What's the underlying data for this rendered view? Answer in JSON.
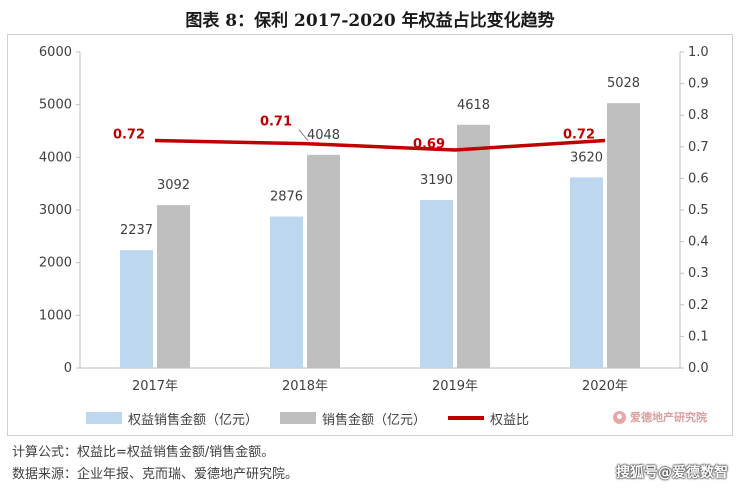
{
  "title": "图表 8：保利 2017-2020 年权益占比变化趋势",
  "chart_data": {
    "type": "bar",
    "categories": [
      "2017年",
      "2018年",
      "2019年",
      "2020年"
    ],
    "series": [
      {
        "name": "权益销售金额（亿元）",
        "type": "bar",
        "axis": "left",
        "color": "#bdd7ee",
        "values": [
          2237,
          2876,
          3190,
          3620
        ],
        "labels": [
          "2237",
          "2876",
          "3190",
          "3620"
        ]
      },
      {
        "name": "销售金额（亿元）",
        "type": "bar",
        "axis": "left",
        "color": "#bfbfbf",
        "values": [
          3092,
          4048,
          4618,
          5028
        ],
        "labels": [
          "3092",
          "4048",
          "4618",
          "5028"
        ]
      },
      {
        "name": "权益比",
        "type": "line",
        "axis": "right",
        "color": "#c00000",
        "values": [
          0.72,
          0.71,
          0.69,
          0.72
        ],
        "labels": [
          "0.72",
          "0.71",
          "0.69",
          "0.72"
        ]
      }
    ],
    "y_left": {
      "min": 0,
      "max": 6000,
      "ticks": [
        "0",
        "1000",
        "2000",
        "3000",
        "4000",
        "5000",
        "6000"
      ]
    },
    "y_right": {
      "min": 0,
      "max": 1.0,
      "ticks": [
        "0.0",
        "0.1",
        "0.2",
        "0.3",
        "0.4",
        "0.5",
        "0.6",
        "0.7",
        "0.8",
        "0.9",
        "1.0"
      ]
    },
    "grid": false,
    "legend_position": "bottom"
  },
  "logo_text": "爱德地产研究院",
  "notes": {
    "formula": "计算公式：权益比=权益销售金额/销售金额。",
    "source": "数据来源：企业年报、克而瑞、爱德地产研究院。"
  },
  "watermark": "搜狐号@爱德数智"
}
